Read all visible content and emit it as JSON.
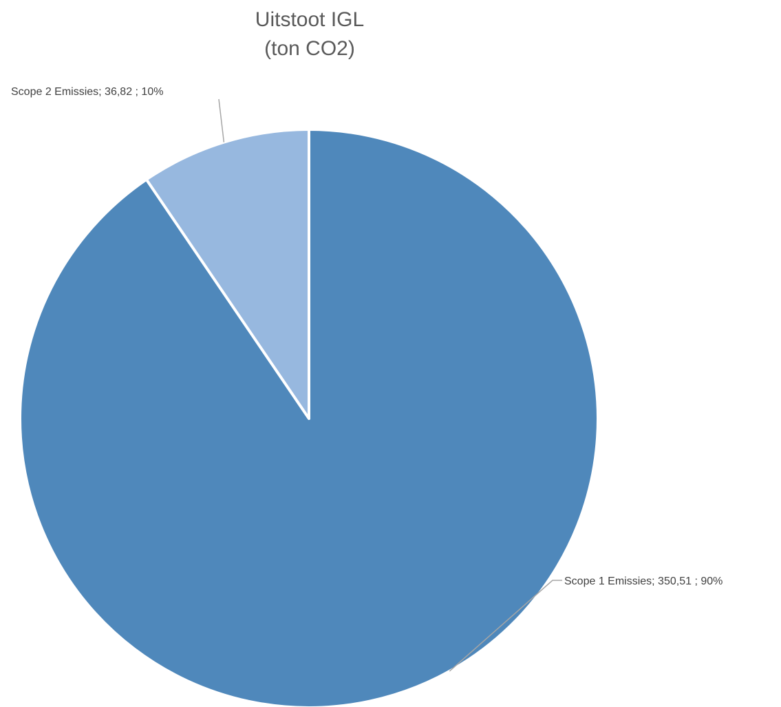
{
  "chart_data": {
    "type": "pie",
    "title": [
      "Uitstoot IGL",
      "(ton CO2)"
    ],
    "slices": [
      {
        "name": "Scope 1 Emissies",
        "value": 350.51,
        "value_text": "350,51",
        "percent": 90,
        "color": "#4f88bb",
        "label": "Scope 1 Emissies;  350,51 ; 90%"
      },
      {
        "name": "Scope 2 Emissies",
        "value": 36.82,
        "value_text": "36,82",
        "percent": 10,
        "color": "#97b8df",
        "label": "Scope 2 Emissies;  36,82 ; 10%"
      }
    ],
    "legend": "none",
    "start_angle_deg": 0,
    "direction": "clockwise"
  }
}
